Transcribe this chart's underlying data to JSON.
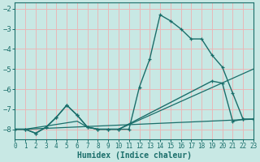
{
  "xlabel": "Humidex (Indice chaleur)",
  "bg_color": "#c8e8e4",
  "grid_color": "#e8b8b8",
  "line_color": "#1a6e6a",
  "xlim": [
    0,
    23
  ],
  "ylim": [
    -8.5,
    -1.7
  ],
  "xticks": [
    0,
    1,
    2,
    3,
    4,
    5,
    6,
    7,
    8,
    9,
    10,
    11,
    12,
    13,
    14,
    15,
    16,
    17,
    18,
    19,
    20,
    21,
    22,
    23
  ],
  "yticks": [
    -8,
    -7,
    -6,
    -5,
    -4,
    -3,
    -2
  ],
  "curve1_x": [
    0,
    1,
    2,
    3,
    4,
    5,
    6,
    7,
    8,
    9,
    10,
    11,
    12,
    13,
    14,
    15,
    16,
    17,
    18,
    19,
    20,
    21,
    22,
    23
  ],
  "curve1_y": [
    -8.0,
    -8.0,
    -8.2,
    -7.9,
    -7.4,
    -6.8,
    -7.3,
    -7.9,
    -8.0,
    -8.0,
    -8.0,
    -8.0,
    -5.9,
    -4.5,
    -2.3,
    -2.6,
    -3.0,
    -3.5,
    -3.5,
    -4.3,
    -4.9,
    -6.2,
    -7.5,
    -7.5
  ],
  "curve2_x": [
    0,
    1,
    2,
    3,
    4,
    5,
    6,
    7,
    8,
    9,
    10,
    19,
    20,
    21,
    22,
    23
  ],
  "curve2_y": [
    -8.0,
    -8.0,
    -8.2,
    -7.9,
    -7.4,
    -6.8,
    -7.3,
    -7.9,
    -8.0,
    -8.0,
    -8.0,
    -5.6,
    -5.7,
    -7.6,
    -7.5,
    -7.5
  ],
  "line1_x": [
    0,
    1,
    23
  ],
  "line1_y": [
    -8.0,
    -8.0,
    -7.5
  ],
  "line2_x": [
    0,
    1,
    6,
    7,
    8,
    9,
    10,
    23
  ],
  "line2_y": [
    -8.0,
    -8.0,
    -7.6,
    -7.9,
    -8.0,
    -8.0,
    -8.0,
    -5.0
  ]
}
